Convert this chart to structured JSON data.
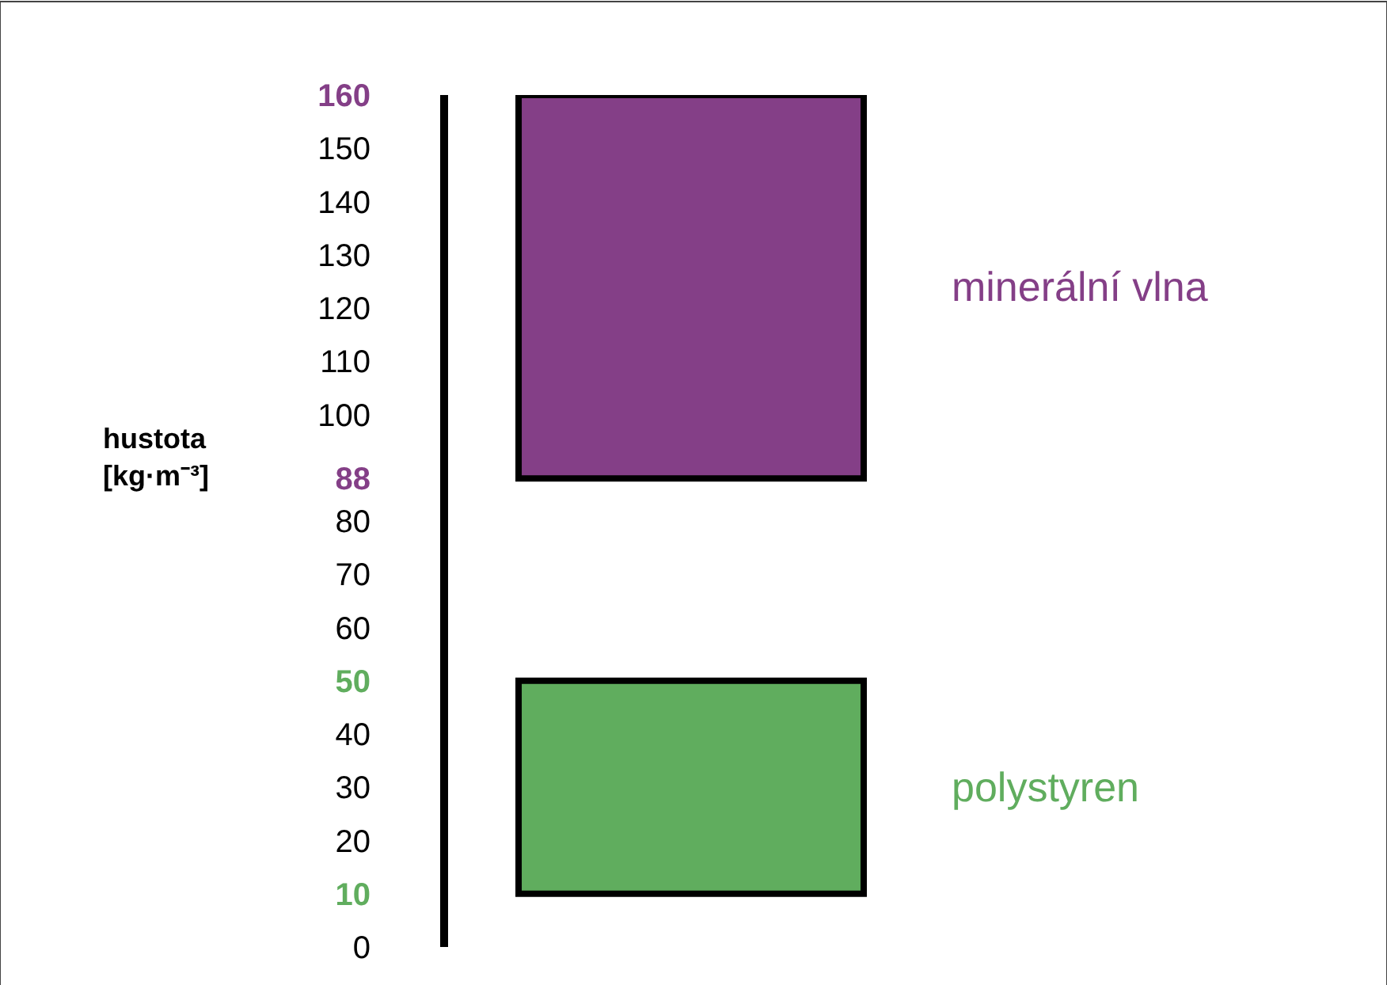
{
  "chart_data": {
    "type": "bar",
    "ylabel": "hustota [kg·m⁻³]",
    "categories": [
      null
    ],
    "series": [
      {
        "name": "polystyren",
        "color": "#60ad5e",
        "values": [
          40
        ],
        "base": [
          10
        ]
      },
      {
        "name": "minerální vlna",
        "color": "#843f87",
        "values": [
          72
        ],
        "base": [
          88
        ]
      }
    ],
    "ylim": [
      0,
      160
    ],
    "yticks": [
      0,
      10,
      20,
      30,
      40,
      50,
      60,
      70,
      80,
      88,
      100,
      110,
      120,
      130,
      140,
      150,
      160
    ],
    "legend": false,
    "tick_labels": "y"
  }
}
